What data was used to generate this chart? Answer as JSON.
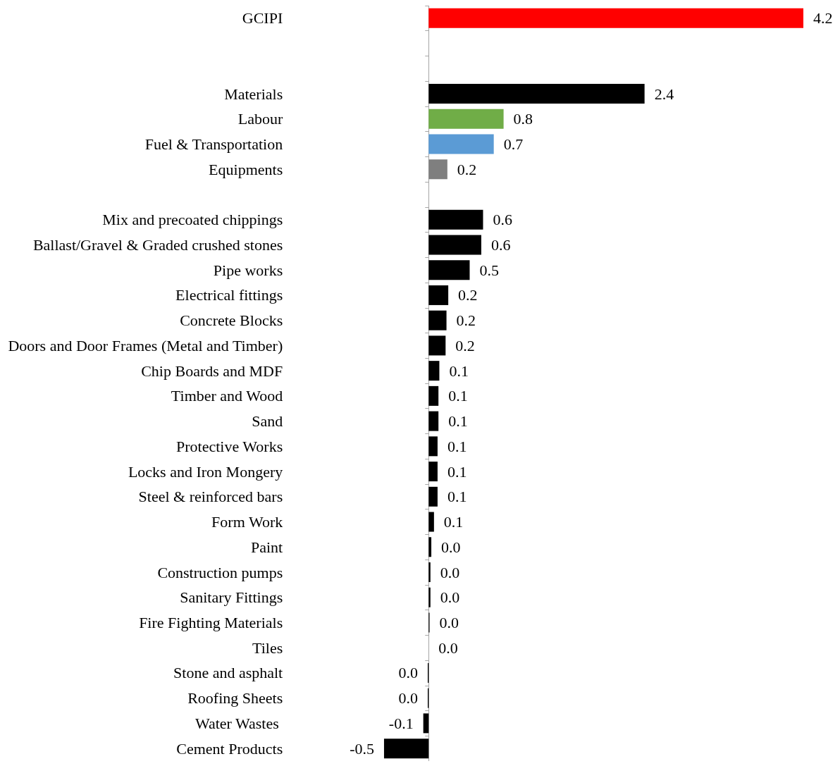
{
  "chart_data": {
    "type": "bar",
    "orientation": "horizontal",
    "categories": [
      "GCIPI",
      null,
      null,
      "Materials",
      "Labour",
      "Fuel & Transportation",
      "Equipments",
      null,
      "Mix and precoated chippings",
      "Ballast/Gravel & Graded crushed stones",
      "Pipe works",
      "Electrical fittings",
      "Concrete Blocks",
      "Doors and Door Frames (Metal and Timber)",
      "Chip Boards and MDF",
      "Timber and Wood",
      "Sand",
      "Protective Works",
      "Locks and Iron Mongery",
      "Steel & reinforced bars",
      "Form Work",
      "Paint",
      "Construction pumps",
      "Sanitary Fittings",
      "Fire Fighting Materials",
      "Tiles",
      "Stone and asphalt",
      "Roofing Sheets",
      "Water Wastes ",
      "Cement Products"
    ],
    "values": [
      4.2,
      null,
      null,
      2.42,
      0.84,
      0.73,
      0.21,
      null,
      0.61,
      0.59,
      0.46,
      0.22,
      0.2,
      0.19,
      0.12,
      0.11,
      0.11,
      0.1,
      0.1,
      0.1,
      0.06,
      0.03,
      0.02,
      0.02,
      0.01,
      0,
      -0.01,
      -0.01,
      -0.06,
      -0.5
    ],
    "value_labels": [
      "4.2",
      null,
      null,
      "2.4",
      "0.8",
      "0.7",
      "0.2",
      null,
      "0.6",
      "0.6",
      "0.5",
      "0.2",
      "0.2",
      "0.2",
      "0.1",
      "0.1",
      "0.1",
      "0.1",
      "0.1",
      "0.1",
      "0.1",
      "0.0",
      "0.0",
      "0.0",
      "0.0",
      "0.0",
      "0.0",
      "0.0",
      "-0.1",
      "-0.5"
    ],
    "colors": [
      "#ff0000",
      null,
      null,
      "#000000",
      "#70ad47",
      "#5b9bd5",
      "#7f7f7f",
      null,
      "#000000",
      "#000000",
      "#000000",
      "#000000",
      "#000000",
      "#000000",
      "#000000",
      "#000000",
      "#000000",
      "#000000",
      "#000000",
      "#000000",
      "#000000",
      "#000000",
      "#000000",
      "#000000",
      "#000000",
      "#000000",
      "#000000",
      "#000000",
      "#000000",
      "#000000"
    ]
  }
}
